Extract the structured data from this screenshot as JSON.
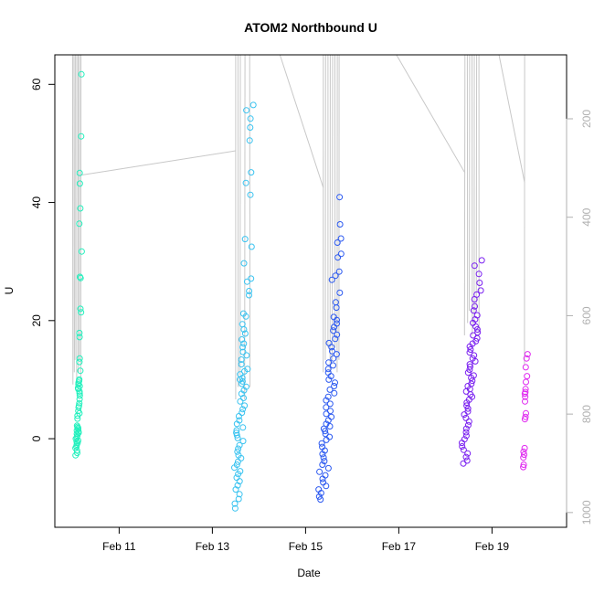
{
  "chart_data": {
    "type": "scatter",
    "title": "ATOM2 Northbound U",
    "xlabel": "Date",
    "ylabel": "U",
    "x_ticks": [
      "Feb 11",
      "Feb 13",
      "Feb 15",
      "Feb 17",
      "Feb 19"
    ],
    "y_ticks": [
      0,
      20,
      40,
      60
    ],
    "y2_ticks": [
      200,
      400,
      600,
      800,
      1000
    ],
    "xlim_days": [
      9.62,
      20.6
    ],
    "ylim": [
      -15,
      65
    ],
    "y2lim_reversed": [
      1030,
      70
    ],
    "colors": {
      "series_start": "#00ffaa",
      "series_end": "#ff00ff",
      "pressure_line": "#c8c8c8",
      "right_axis": "#b0b0b0"
    },
    "secondary_axis": "pressure (reversed), light grey, unlabeled",
    "clusters": [
      {
        "date": "Feb 10",
        "color": "#22f0bd",
        "u_values": [
          61.7,
          51.2,
          45,
          43.2,
          39,
          36.4,
          31.7,
          27.4,
          27.2,
          22,
          21.4,
          17.9,
          17.2,
          13.6,
          13,
          11.5,
          10,
          9.8,
          9.5,
          9.2,
          8.9,
          8.6,
          8.4,
          8,
          7.7,
          7.3,
          6.7,
          6,
          5.6,
          5.3,
          4.7,
          4.3,
          3.9,
          3.4,
          2.2,
          2,
          1.8,
          1.6,
          1.4,
          1.2,
          1,
          0.8,
          0.5,
          0.2,
          0,
          -0.3,
          -0.5,
          -0.7,
          -1,
          -1.3,
          -1.6,
          -2,
          -2.4,
          -2.8
        ]
      },
      {
        "date": "Feb 13",
        "color": "#3ac3f0",
        "u_values": [
          56.5,
          55.6,
          54.2,
          52.7,
          50.5,
          45.1,
          43.3,
          41.3,
          33.8,
          32.5,
          29.7,
          27.1,
          26.6,
          25,
          24.3,
          21.2,
          20.7,
          19.4,
          18.5,
          17.8,
          16.8,
          16.1,
          15.5,
          14.7,
          14.1,
          13.4,
          12.6,
          11.8,
          11.4,
          10.9,
          10.3,
          10,
          9.7,
          9.3,
          8.8,
          8.2,
          7.6,
          6.9,
          6.3,
          5.6,
          5,
          4.4,
          3.8,
          3.1,
          2.5,
          1.9,
          1.4,
          1,
          0.6,
          0.1,
          -0.4,
          -1.1,
          -1.7,
          -2.2,
          -2.8,
          -3.3,
          -3.9,
          -4.4,
          -4.9,
          -5.5,
          -6,
          -6.6,
          -7.2,
          -7.9,
          -8.6,
          -9.4,
          -10.2,
          -11,
          -11.8
        ]
      },
      {
        "date": "Feb 15",
        "color": "#2a58f0",
        "u_values": [
          40.9,
          36.3,
          33.9,
          33.2,
          31.3,
          30.7,
          28.3,
          27.6,
          26.9,
          24.7,
          23.1,
          22.2,
          20.6,
          20.1,
          19.5,
          18.9,
          18.3,
          17.6,
          16.9,
          16.2,
          15.5,
          14.8,
          14.3,
          13.6,
          12.9,
          12.4,
          11.8,
          11.2,
          10.6,
          10,
          9.5,
          8.9,
          8.3,
          7.7,
          7.1,
          6.5,
          5.9,
          5.3,
          4.7,
          4.2,
          3.7,
          3.1,
          2.5,
          2.1,
          1.7,
          1.3,
          0.8,
          0.3,
          -0.2,
          -0.8,
          -1.4,
          -2,
          -2.6,
          -3.2,
          -3.8,
          -4.4,
          -5,
          -5.6,
          -6.2,
          -6.8,
          -7.4,
          -8,
          -8.6,
          -9.2,
          -9.8,
          -10.3
        ]
      },
      {
        "date": "Feb 18",
        "color": "#7a20f0",
        "u_values": [
          30.2,
          29.3,
          27.9,
          26.4,
          25.1,
          24.4,
          23.6,
          22.4,
          21.7,
          20.9,
          20.2,
          19.6,
          19,
          18.5,
          18,
          17.5,
          17,
          16.5,
          16.1,
          15.6,
          15.1,
          14.6,
          14.1,
          13.6,
          13.1,
          12.6,
          12.2,
          11.7,
          11.2,
          10.7,
          10.3,
          9.8,
          9.3,
          8.9,
          8.4,
          8,
          7.5,
          7.1,
          6.6,
          6.1,
          5.6,
          5.1,
          4.6,
          4.1,
          3.5,
          2.9,
          2.3,
          1.7,
          1.1,
          0.5,
          -0.1,
          -0.7,
          -1.3,
          -1.9,
          -2.5,
          -3.1,
          -3.7,
          -4.2
        ]
      },
      {
        "date": "Feb 19",
        "color": "#e028f0",
        "u_values": [
          14.3,
          13.6,
          12.1,
          10.6,
          9.6,
          8.4,
          7.9,
          7.6,
          7.1,
          6.3,
          4.3,
          3.7,
          3.3,
          -1.6,
          -2.2,
          -2.7,
          -3.2,
          -4.4,
          -4.8
        ]
      }
    ]
  }
}
